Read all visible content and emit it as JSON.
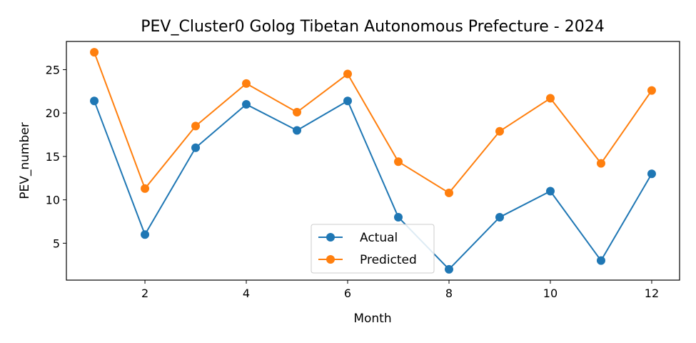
{
  "chart_data": {
    "type": "line",
    "title": "PEV_Cluster0 Golog Tibetan Autonomous Prefecture - 2024",
    "xlabel": "Month",
    "ylabel": "PEV_number",
    "x": [
      1,
      2,
      3,
      4,
      5,
      6,
      7,
      8,
      9,
      10,
      11,
      12
    ],
    "xlim": [
      0.45,
      12.55
    ],
    "ylim": [
      0.75,
      28.25
    ],
    "xticks": [
      2,
      4,
      6,
      8,
      10,
      12
    ],
    "yticks": [
      5,
      10,
      15,
      20,
      25
    ],
    "grid": false,
    "legend_position": "lower-center",
    "series": [
      {
        "name": "Actual",
        "color": "#1f77b4",
        "values": [
          21.4,
          6.0,
          16.0,
          21.0,
          18.0,
          21.4,
          8.0,
          2.0,
          8.0,
          11.0,
          3.0,
          13.0
        ]
      },
      {
        "name": "Predicted",
        "color": "#ff7f0e",
        "values": [
          27.0,
          11.3,
          18.5,
          23.4,
          20.1,
          24.5,
          14.4,
          10.8,
          17.9,
          21.7,
          14.2,
          22.6
        ]
      }
    ]
  }
}
